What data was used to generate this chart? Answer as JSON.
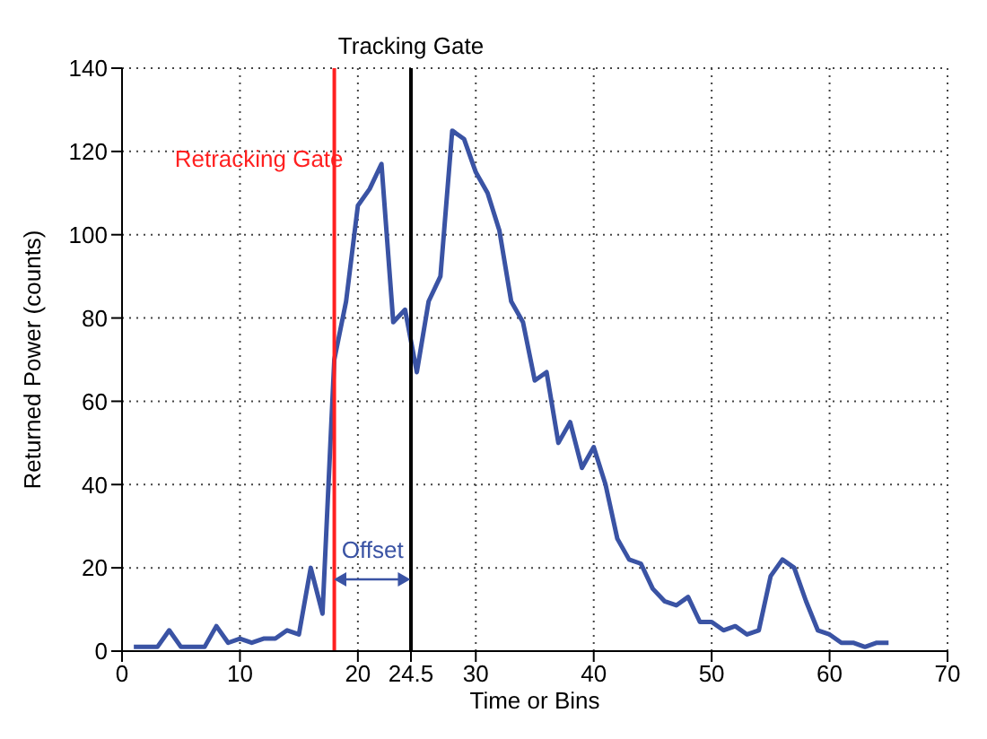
{
  "chart_data": {
    "type": "line",
    "xlabel": "Time or Bins",
    "ylabel": "Returned Power (counts)",
    "x": [
      1,
      2,
      3,
      4,
      5,
      6,
      7,
      8,
      9,
      10,
      11,
      12,
      13,
      14,
      15,
      16,
      17,
      18,
      19,
      20,
      21,
      22,
      23,
      24,
      25,
      26,
      27,
      28,
      29,
      30,
      31,
      32,
      33,
      34,
      35,
      36,
      37,
      38,
      39,
      40,
      41,
      42,
      43,
      44,
      45,
      46,
      47,
      48,
      49,
      50,
      51,
      52,
      53,
      54,
      55,
      56,
      57,
      58,
      59,
      60,
      61,
      62,
      63,
      64,
      65
    ],
    "series": [
      {
        "color": "#3a53a4",
        "values": [
          1,
          1,
          1,
          5,
          1,
          1,
          1,
          6,
          2,
          3,
          2,
          3,
          3,
          5,
          4,
          20,
          9,
          70,
          84,
          107,
          111,
          117,
          79,
          82,
          67,
          84,
          90,
          125,
          123,
          115,
          110,
          101,
          84,
          79,
          65,
          67,
          50,
          55,
          44,
          49,
          40,
          27,
          22,
          21,
          15,
          12,
          11,
          13,
          7,
          7,
          5,
          6,
          4,
          5,
          18,
          22,
          20,
          12,
          5,
          4,
          2,
          2,
          1,
          2,
          2
        ]
      }
    ],
    "xlim": [
      0,
      70
    ],
    "ylim": [
      0,
      140
    ],
    "xticks": [
      0,
      10,
      20,
      24.5,
      30,
      40,
      50,
      60,
      70
    ],
    "yticks": [
      0,
      20,
      40,
      60,
      80,
      100,
      120,
      140
    ],
    "grid": true,
    "marker": "none",
    "line_style": "solid",
    "ref_lines": [
      {
        "axis": "x",
        "value": 18,
        "label": "Retracking Gate",
        "color": "#ff2020"
      },
      {
        "axis": "x",
        "value": 24.5,
        "label": "Tracking Gate",
        "color": "#000000"
      }
    ],
    "annotations": [
      "Offset"
    ]
  }
}
